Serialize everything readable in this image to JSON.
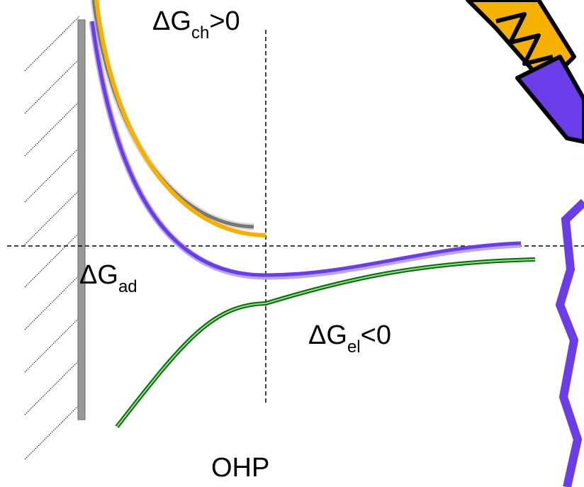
{
  "labels": {
    "chemical": {
      "symbol": "ΔG",
      "subscript": "ch",
      "relation": ">0"
    },
    "adsorption": {
      "symbol": "ΔG",
      "subscript": "ad"
    },
    "electrostatic": {
      "symbol": "ΔG",
      "subscript": "el",
      "relation": "<0"
    },
    "plane": "OHP"
  }
}
